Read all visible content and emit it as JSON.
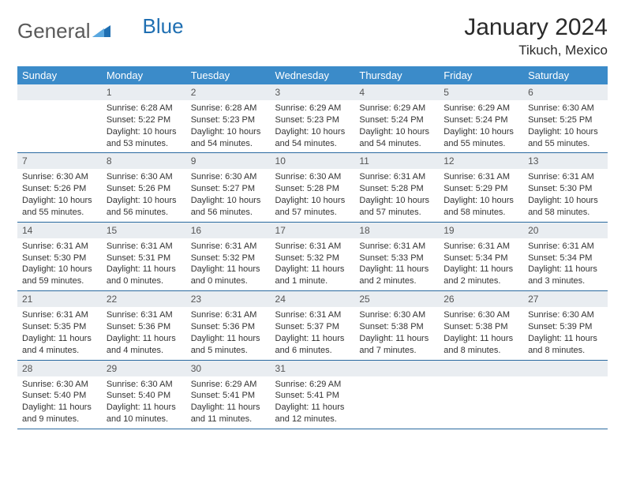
{
  "logo": {
    "text1": "General",
    "text2": "Blue",
    "color1": "#6a6a6a",
    "color2": "#1f6fb2"
  },
  "title": "January 2024",
  "location": "Tikuch, Mexico",
  "colors": {
    "header_bg": "#3b8bc9",
    "header_fg": "#ffffff",
    "daynum_bg": "#e9edf1",
    "daynum_fg": "#555555",
    "border": "#2a6aa0",
    "text": "#333333",
    "page_bg": "#ffffff"
  },
  "fonts": {
    "title_size": 30,
    "location_size": 17,
    "head_size": 13,
    "daynum_size": 12,
    "body_size": 11
  },
  "layout": {
    "cols": 7,
    "rows": 5,
    "first_day_col": 1
  },
  "day_names": [
    "Sunday",
    "Monday",
    "Tuesday",
    "Wednesday",
    "Thursday",
    "Friday",
    "Saturday"
  ],
  "days": [
    {
      "n": 1,
      "sunrise": "6:28 AM",
      "sunset": "5:22 PM",
      "daylight": "10 hours and 53 minutes."
    },
    {
      "n": 2,
      "sunrise": "6:28 AM",
      "sunset": "5:23 PM",
      "daylight": "10 hours and 54 minutes."
    },
    {
      "n": 3,
      "sunrise": "6:29 AM",
      "sunset": "5:23 PM",
      "daylight": "10 hours and 54 minutes."
    },
    {
      "n": 4,
      "sunrise": "6:29 AM",
      "sunset": "5:24 PM",
      "daylight": "10 hours and 54 minutes."
    },
    {
      "n": 5,
      "sunrise": "6:29 AM",
      "sunset": "5:24 PM",
      "daylight": "10 hours and 55 minutes."
    },
    {
      "n": 6,
      "sunrise": "6:30 AM",
      "sunset": "5:25 PM",
      "daylight": "10 hours and 55 minutes."
    },
    {
      "n": 7,
      "sunrise": "6:30 AM",
      "sunset": "5:26 PM",
      "daylight": "10 hours and 55 minutes."
    },
    {
      "n": 8,
      "sunrise": "6:30 AM",
      "sunset": "5:26 PM",
      "daylight": "10 hours and 56 minutes."
    },
    {
      "n": 9,
      "sunrise": "6:30 AM",
      "sunset": "5:27 PM",
      "daylight": "10 hours and 56 minutes."
    },
    {
      "n": 10,
      "sunrise": "6:30 AM",
      "sunset": "5:28 PM",
      "daylight": "10 hours and 57 minutes."
    },
    {
      "n": 11,
      "sunrise": "6:31 AM",
      "sunset": "5:28 PM",
      "daylight": "10 hours and 57 minutes."
    },
    {
      "n": 12,
      "sunrise": "6:31 AM",
      "sunset": "5:29 PM",
      "daylight": "10 hours and 58 minutes."
    },
    {
      "n": 13,
      "sunrise": "6:31 AM",
      "sunset": "5:30 PM",
      "daylight": "10 hours and 58 minutes."
    },
    {
      "n": 14,
      "sunrise": "6:31 AM",
      "sunset": "5:30 PM",
      "daylight": "10 hours and 59 minutes."
    },
    {
      "n": 15,
      "sunrise": "6:31 AM",
      "sunset": "5:31 PM",
      "daylight": "11 hours and 0 minutes."
    },
    {
      "n": 16,
      "sunrise": "6:31 AM",
      "sunset": "5:32 PM",
      "daylight": "11 hours and 0 minutes."
    },
    {
      "n": 17,
      "sunrise": "6:31 AM",
      "sunset": "5:32 PM",
      "daylight": "11 hours and 1 minute."
    },
    {
      "n": 18,
      "sunrise": "6:31 AM",
      "sunset": "5:33 PM",
      "daylight": "11 hours and 2 minutes."
    },
    {
      "n": 19,
      "sunrise": "6:31 AM",
      "sunset": "5:34 PM",
      "daylight": "11 hours and 2 minutes."
    },
    {
      "n": 20,
      "sunrise": "6:31 AM",
      "sunset": "5:34 PM",
      "daylight": "11 hours and 3 minutes."
    },
    {
      "n": 21,
      "sunrise": "6:31 AM",
      "sunset": "5:35 PM",
      "daylight": "11 hours and 4 minutes."
    },
    {
      "n": 22,
      "sunrise": "6:31 AM",
      "sunset": "5:36 PM",
      "daylight": "11 hours and 4 minutes."
    },
    {
      "n": 23,
      "sunrise": "6:31 AM",
      "sunset": "5:36 PM",
      "daylight": "11 hours and 5 minutes."
    },
    {
      "n": 24,
      "sunrise": "6:31 AM",
      "sunset": "5:37 PM",
      "daylight": "11 hours and 6 minutes."
    },
    {
      "n": 25,
      "sunrise": "6:30 AM",
      "sunset": "5:38 PM",
      "daylight": "11 hours and 7 minutes."
    },
    {
      "n": 26,
      "sunrise": "6:30 AM",
      "sunset": "5:38 PM",
      "daylight": "11 hours and 8 minutes."
    },
    {
      "n": 27,
      "sunrise": "6:30 AM",
      "sunset": "5:39 PM",
      "daylight": "11 hours and 8 minutes."
    },
    {
      "n": 28,
      "sunrise": "6:30 AM",
      "sunset": "5:40 PM",
      "daylight": "11 hours and 9 minutes."
    },
    {
      "n": 29,
      "sunrise": "6:30 AM",
      "sunset": "5:40 PM",
      "daylight": "11 hours and 10 minutes."
    },
    {
      "n": 30,
      "sunrise": "6:29 AM",
      "sunset": "5:41 PM",
      "daylight": "11 hours and 11 minutes."
    },
    {
      "n": 31,
      "sunrise": "6:29 AM",
      "sunset": "5:41 PM",
      "daylight": "11 hours and 12 minutes."
    }
  ],
  "labels": {
    "sunrise": "Sunrise:",
    "sunset": "Sunset:",
    "daylight": "Daylight:"
  }
}
